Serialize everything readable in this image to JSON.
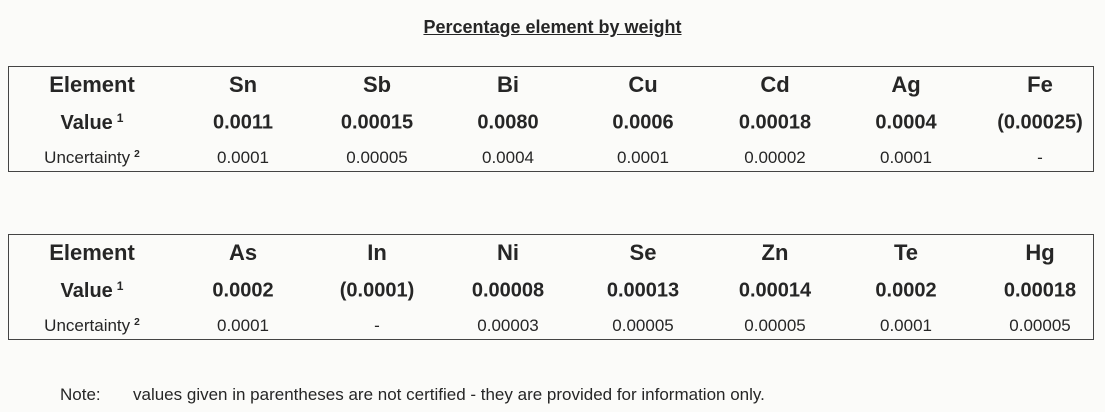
{
  "title": "Percentage element by weight",
  "tables": [
    {
      "rows": [
        {
          "label": "Element",
          "cells": [
            "Sn",
            "Sb",
            "Bi",
            "Cu",
            "Cd",
            "Ag",
            "Fe"
          ]
        },
        {
          "label": "Value",
          "sup": "1",
          "cells": [
            "0.0011",
            "0.00015",
            "0.0080",
            "0.0006",
            "0.00018",
            "0.0004",
            "(0.00025)"
          ]
        },
        {
          "label": "Uncertainty",
          "sup": "2",
          "cells": [
            "0.0001",
            "0.00005",
            "0.0004",
            "0.0001",
            "0.00002",
            "0.0001",
            "-"
          ]
        }
      ]
    },
    {
      "rows": [
        {
          "label": "Element",
          "cells": [
            "As",
            "In",
            "Ni",
            "Se",
            "Zn",
            "Te",
            "Hg"
          ]
        },
        {
          "label": "Value",
          "sup": "1",
          "cells": [
            "0.0002",
            "(0.0001)",
            "0.00008",
            "0.00013",
            "0.00014",
            "0.0002",
            "0.00018"
          ]
        },
        {
          "label": "Uncertainty",
          "sup": "2",
          "cells": [
            "0.0001",
            "-",
            "0.00003",
            "0.00005",
            "0.00005",
            "0.0001",
            "0.00005"
          ]
        }
      ]
    }
  ],
  "note": {
    "label": "Note:",
    "text": "values given in parentheses are not certified - they are provided for information only."
  }
}
